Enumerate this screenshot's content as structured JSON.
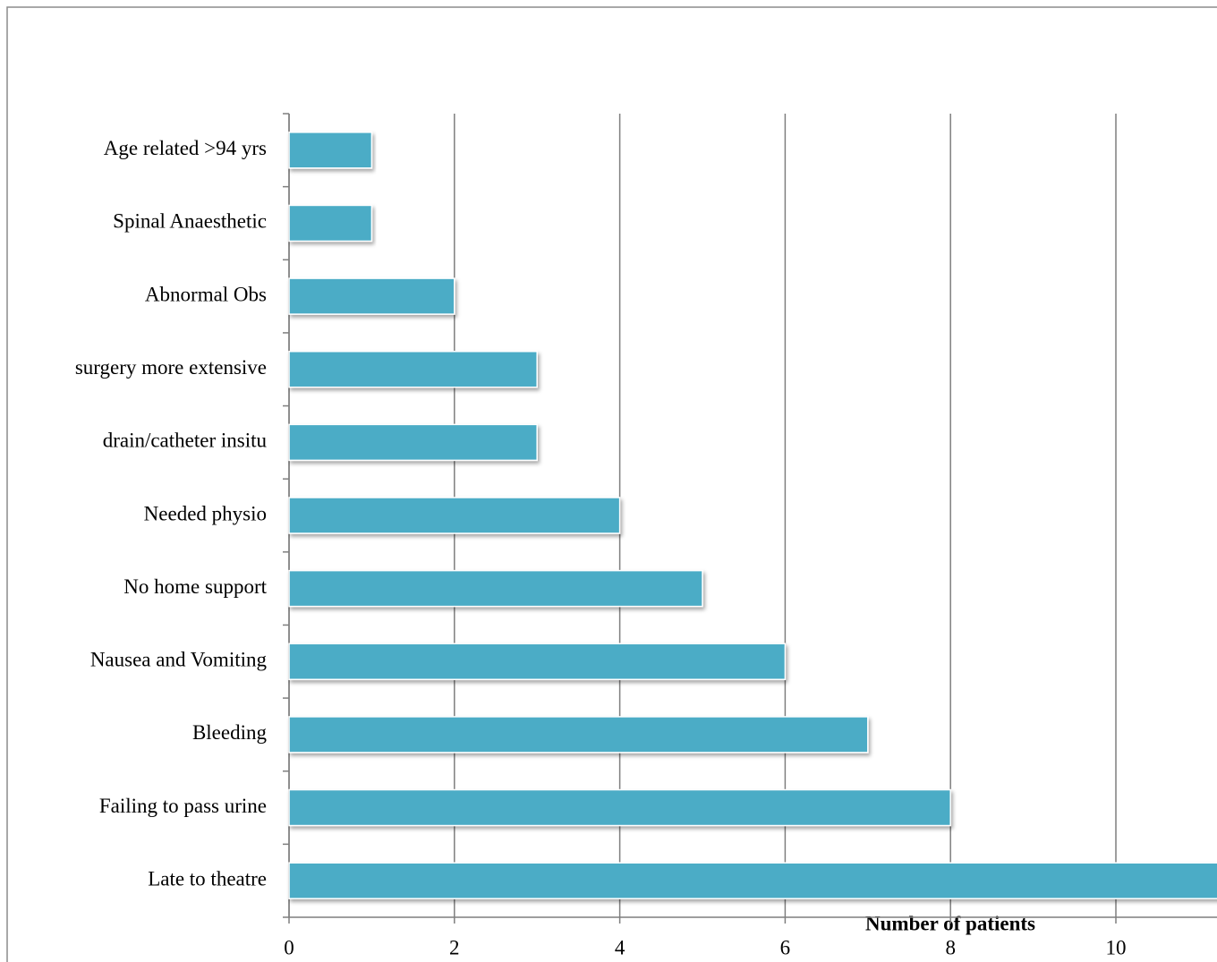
{
  "chart_data": {
    "type": "bar",
    "orientation": "horizontal",
    "x_label": "Number of patients",
    "categories": [
      "Age related >94 yrs",
      "Spinal Anaesthetic",
      "Abnormal Obs",
      "surgery more extensive",
      "drain/catheter insitu",
      "Needed physio",
      "No home support",
      "Nausea and Vomiting",
      "Bleeding",
      "Failing to pass urine",
      "Late to theatre"
    ],
    "values": [
      1,
      1,
      2,
      3,
      3,
      4,
      5,
      6,
      7,
      8,
      12
    ],
    "color": "#4bacc6",
    "xlim": [
      0,
      12
    ],
    "xticks": [
      0,
      2,
      4,
      6,
      8,
      10
    ],
    "grid": true
  }
}
